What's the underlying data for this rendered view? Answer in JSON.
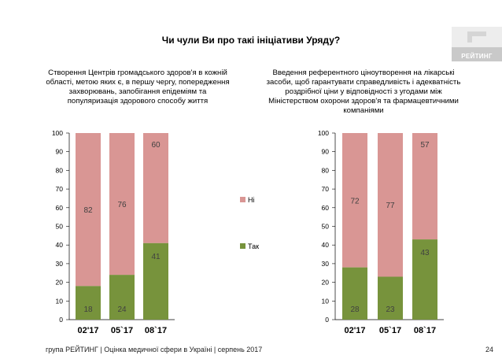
{
  "title": "Чи чули Ви про такі ініціативи Уряду?",
  "logo": {
    "text": "РЕЙТИНГ"
  },
  "footer": {
    "text": "група РЕЙТИНГ  |  Оцінка медичної сфери в Україні  |  серпень 2017",
    "page": "24"
  },
  "colors": {
    "yes": "#77933c",
    "no": "#d99694",
    "axis": "#000000",
    "grid": "#d9d9d9"
  },
  "chart_data": [
    {
      "type": "bar",
      "stacked": true,
      "title": "Створення Центрів громадського здоров'я в кожній області, метою яких є, в першу чергу, попередження захворювань, запобігання епідеміям та популяризація здорового способу життя",
      "categories": [
        "02'17",
        "05`17",
        "08`17"
      ],
      "series": [
        {
          "name": "Так",
          "values": [
            18,
            24,
            41
          ]
        },
        {
          "name": "Ні",
          "values": [
            82,
            76,
            60
          ]
        }
      ],
      "ylim": [
        0,
        100
      ],
      "yticks": [
        0,
        10,
        20,
        30,
        40,
        50,
        60,
        70,
        80,
        90,
        100
      ],
      "legend": [
        "Ні",
        "Так"
      ],
      "legend_position": "right"
    },
    {
      "type": "bar",
      "stacked": true,
      "title": "Введення референтного ціноутворення на лікарські засоби, щоб гарантувати справедливість і адекватність роздрібної ціни у відповідності з угодами між Міністерством охорони здоров'я та фармацевтичними компаніями",
      "categories": [
        "02'17",
        "05`17",
        "08`17"
      ],
      "series": [
        {
          "name": "Так",
          "values": [
            28,
            23,
            43
          ]
        },
        {
          "name": "Ні",
          "values": [
            72,
            77,
            57
          ]
        }
      ],
      "ylim": [
        0,
        100
      ],
      "yticks": [
        0,
        10,
        20,
        30,
        40,
        50,
        60,
        70,
        80,
        90,
        100
      ]
    }
  ]
}
